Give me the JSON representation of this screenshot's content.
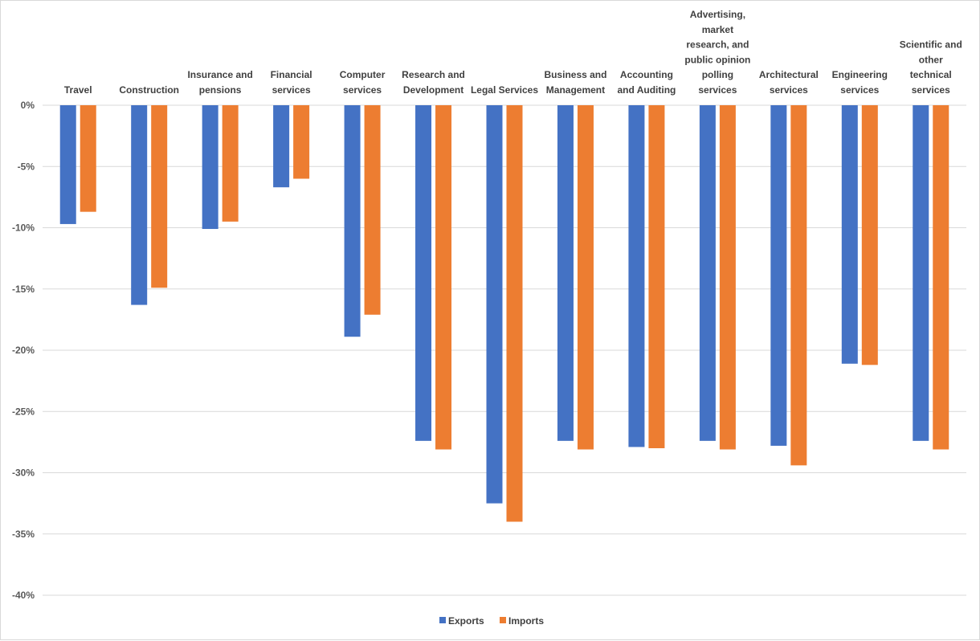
{
  "chart_data": {
    "type": "bar",
    "title": "",
    "xlabel": "",
    "ylabel": "",
    "ylim": [
      -40,
      0
    ],
    "yticks": [
      0,
      -5,
      -10,
      -15,
      -20,
      -25,
      -30,
      -35,
      -40
    ],
    "ytick_format": "percent",
    "grid": true,
    "legend_position": "bottom",
    "category_axis_position": "top",
    "categories": [
      "Travel",
      "Construction",
      "Insurance and pensions",
      "Financial services",
      "Computer services",
      "Research and Development",
      "Legal Services",
      "Business and Management",
      "Accounting and Auditing",
      "Advertising, market research, and public opinion polling services",
      "Architectural services",
      "Engineering services",
      "Scientific and other technical services"
    ],
    "category_label_lines": [
      [
        "Travel"
      ],
      [
        "Construction"
      ],
      [
        "Insurance and",
        "pensions"
      ],
      [
        "Financial",
        "services"
      ],
      [
        "Computer",
        "services"
      ],
      [
        "Research and",
        "Development"
      ],
      [
        "Legal Services"
      ],
      [
        "Business and",
        "Management"
      ],
      [
        "Accounting",
        "and Auditing"
      ],
      [
        "Advertising,",
        "market",
        "research, and",
        "public opinion",
        "polling",
        "services"
      ],
      [
        "Architectural",
        "services"
      ],
      [
        "Engineering",
        "services"
      ],
      [
        "Scientific and",
        "other",
        "technical",
        "services"
      ]
    ],
    "series": [
      {
        "name": "Exports",
        "color": "#4472c4",
        "values": [
          -9.7,
          -16.3,
          -10.1,
          -6.7,
          -18.9,
          -27.4,
          -32.5,
          -27.4,
          -27.9,
          -27.4,
          -27.8,
          -21.1,
          -27.4
        ]
      },
      {
        "name": "Imports",
        "color": "#ed7d31",
        "values": [
          -8.7,
          -14.9,
          -9.5,
          -6.0,
          -17.1,
          -28.1,
          -34.0,
          -28.1,
          -28.0,
          -28.1,
          -29.4,
          -21.2,
          -28.1
        ]
      }
    ]
  }
}
